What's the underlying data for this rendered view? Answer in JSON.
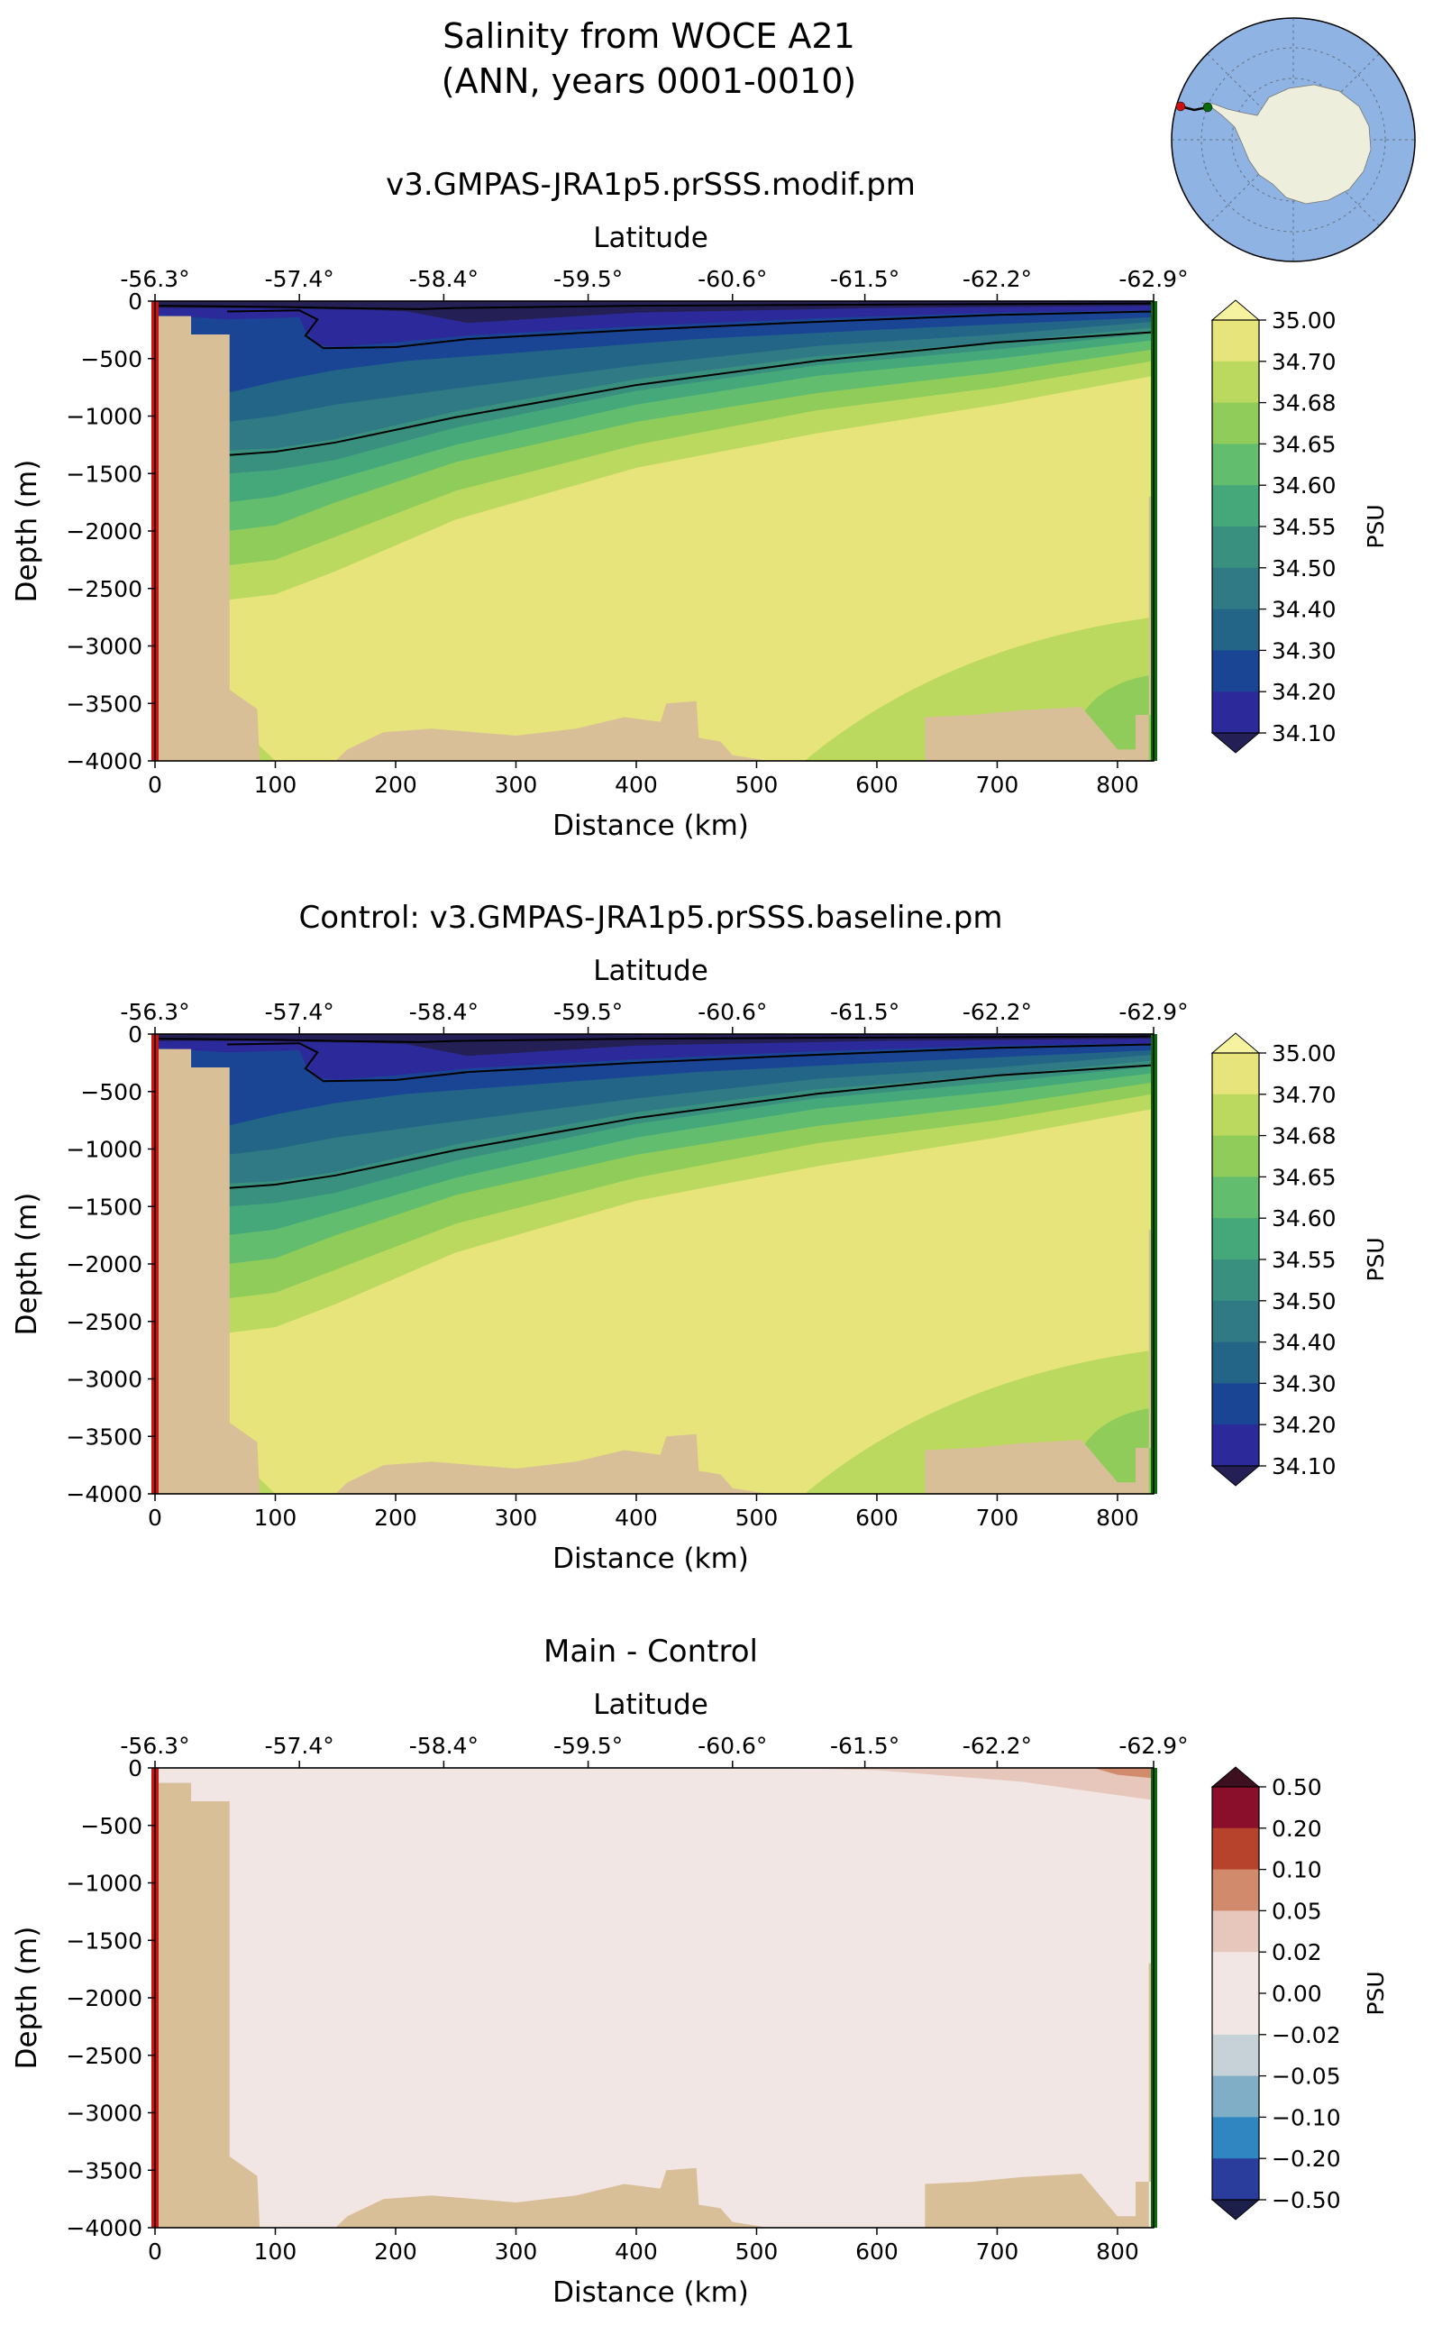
{
  "figure": {
    "title_line1": "Salinity from WOCE A21",
    "title_line2": "(ANN, years 0001-0010)"
  },
  "colors": {
    "topo": "#d9bf98",
    "start_marker": "#cc1111",
    "end_marker": "#0a6b0a",
    "map_ocean": "#8fb3e3",
    "map_land": "#eeeedd",
    "contour": "#000000"
  },
  "inset_map": {
    "projection": "south-polar-stereographic",
    "marker_colors": [
      "red",
      "green"
    ]
  },
  "chart_data": [
    {
      "type": "contourf-section",
      "title": "v3.GMPAS-JRA1p5.prSSS.modif.pm",
      "xlabel": "Distance (km)",
      "ylabel": "Depth (m)",
      "top_xlabel": "Latitude",
      "xlim": [
        0,
        830
      ],
      "ylim": [
        -4000,
        0
      ],
      "xticks": [
        0,
        100,
        200,
        300,
        400,
        500,
        600,
        700,
        800
      ],
      "yticks": [
        0,
        -500,
        -1000,
        -1500,
        -2000,
        -2500,
        -3000,
        -3500,
        -4000
      ],
      "lat_ticks": [
        "-56.3°",
        "-57.4°",
        "-58.4°",
        "-59.5°",
        "-60.6°",
        "-61.5°",
        "-62.2°",
        "-62.9°"
      ],
      "colorbar_label": "PSU",
      "colorbar_levels": [
        "35.00",
        "34.70",
        "34.68",
        "34.65",
        "34.60",
        "34.55",
        "34.50",
        "34.40",
        "34.30",
        "34.20",
        "34.10"
      ],
      "colorbar_colors": [
        "#e6e47a",
        "#bcd95f",
        "#8fcc5a",
        "#62bd6e",
        "#44a87a",
        "#39907f",
        "#2f7a84",
        "#236587",
        "#1a4594",
        "#2c2a9a"
      ],
      "over_color": "#f6f3a0",
      "under_color": "#241f55",
      "contour_lines_at_psu": [
        34.1,
        34.3,
        34.5,
        34.7
      ]
    },
    {
      "type": "contourf-section",
      "title": "Control: v3.GMPAS-JRA1p5.prSSS.baseline.pm",
      "xlabel": "Distance (km)",
      "ylabel": "Depth (m)",
      "top_xlabel": "Latitude",
      "xlim": [
        0,
        830
      ],
      "ylim": [
        -4000,
        0
      ],
      "xticks": [
        0,
        100,
        200,
        300,
        400,
        500,
        600,
        700,
        800
      ],
      "yticks": [
        0,
        -500,
        -1000,
        -1500,
        -2000,
        -2500,
        -3000,
        -3500,
        -4000
      ],
      "lat_ticks": [
        "-56.3°",
        "-57.4°",
        "-58.4°",
        "-59.5°",
        "-60.6°",
        "-61.5°",
        "-62.2°",
        "-62.9°"
      ],
      "colorbar_label": "PSU",
      "colorbar_levels": [
        "35.00",
        "34.70",
        "34.68",
        "34.65",
        "34.60",
        "34.55",
        "34.50",
        "34.40",
        "34.30",
        "34.20",
        "34.10"
      ],
      "colorbar_colors": [
        "#e6e47a",
        "#bcd95f",
        "#8fcc5a",
        "#62bd6e",
        "#44a87a",
        "#39907f",
        "#2f7a84",
        "#236587",
        "#1a4594",
        "#2c2a9a"
      ],
      "over_color": "#f6f3a0",
      "under_color": "#241f55",
      "contour_lines_at_psu": [
        34.1,
        34.3,
        34.5,
        34.7
      ]
    },
    {
      "type": "contourf-section",
      "title": "Main - Control",
      "xlabel": "Distance (km)",
      "ylabel": "Depth (m)",
      "top_xlabel": "Latitude",
      "xlim": [
        0,
        830
      ],
      "ylim": [
        -4000,
        0
      ],
      "xticks": [
        0,
        100,
        200,
        300,
        400,
        500,
        600,
        700,
        800
      ],
      "yticks": [
        0,
        -500,
        -1000,
        -1500,
        -2000,
        -2500,
        -3000,
        -3500,
        -4000
      ],
      "lat_ticks": [
        "-56.3°",
        "-57.4°",
        "-58.4°",
        "-59.5°",
        "-60.6°",
        "-61.5°",
        "-62.2°",
        "-62.9°"
      ],
      "colorbar_label": "PSU",
      "colorbar_levels": [
        "0.50",
        "0.20",
        "0.10",
        "0.05",
        "0.02",
        "0.00",
        "−0.02",
        "−0.05",
        "−0.10",
        "−0.20",
        "−0.50"
      ],
      "colorbar_colors": [
        "#8a0f2a",
        "#b8432c",
        "#d18a6c",
        "#e7c6bc",
        "#f1e6e4",
        "#f1e6e4",
        "#c7d1d8",
        "#7faec6",
        "#2f86c0",
        "#2a3d9c"
      ],
      "over_color": "#3d1020",
      "under_color": "#1b1f4a",
      "contour_lines_at_psu": []
    }
  ]
}
